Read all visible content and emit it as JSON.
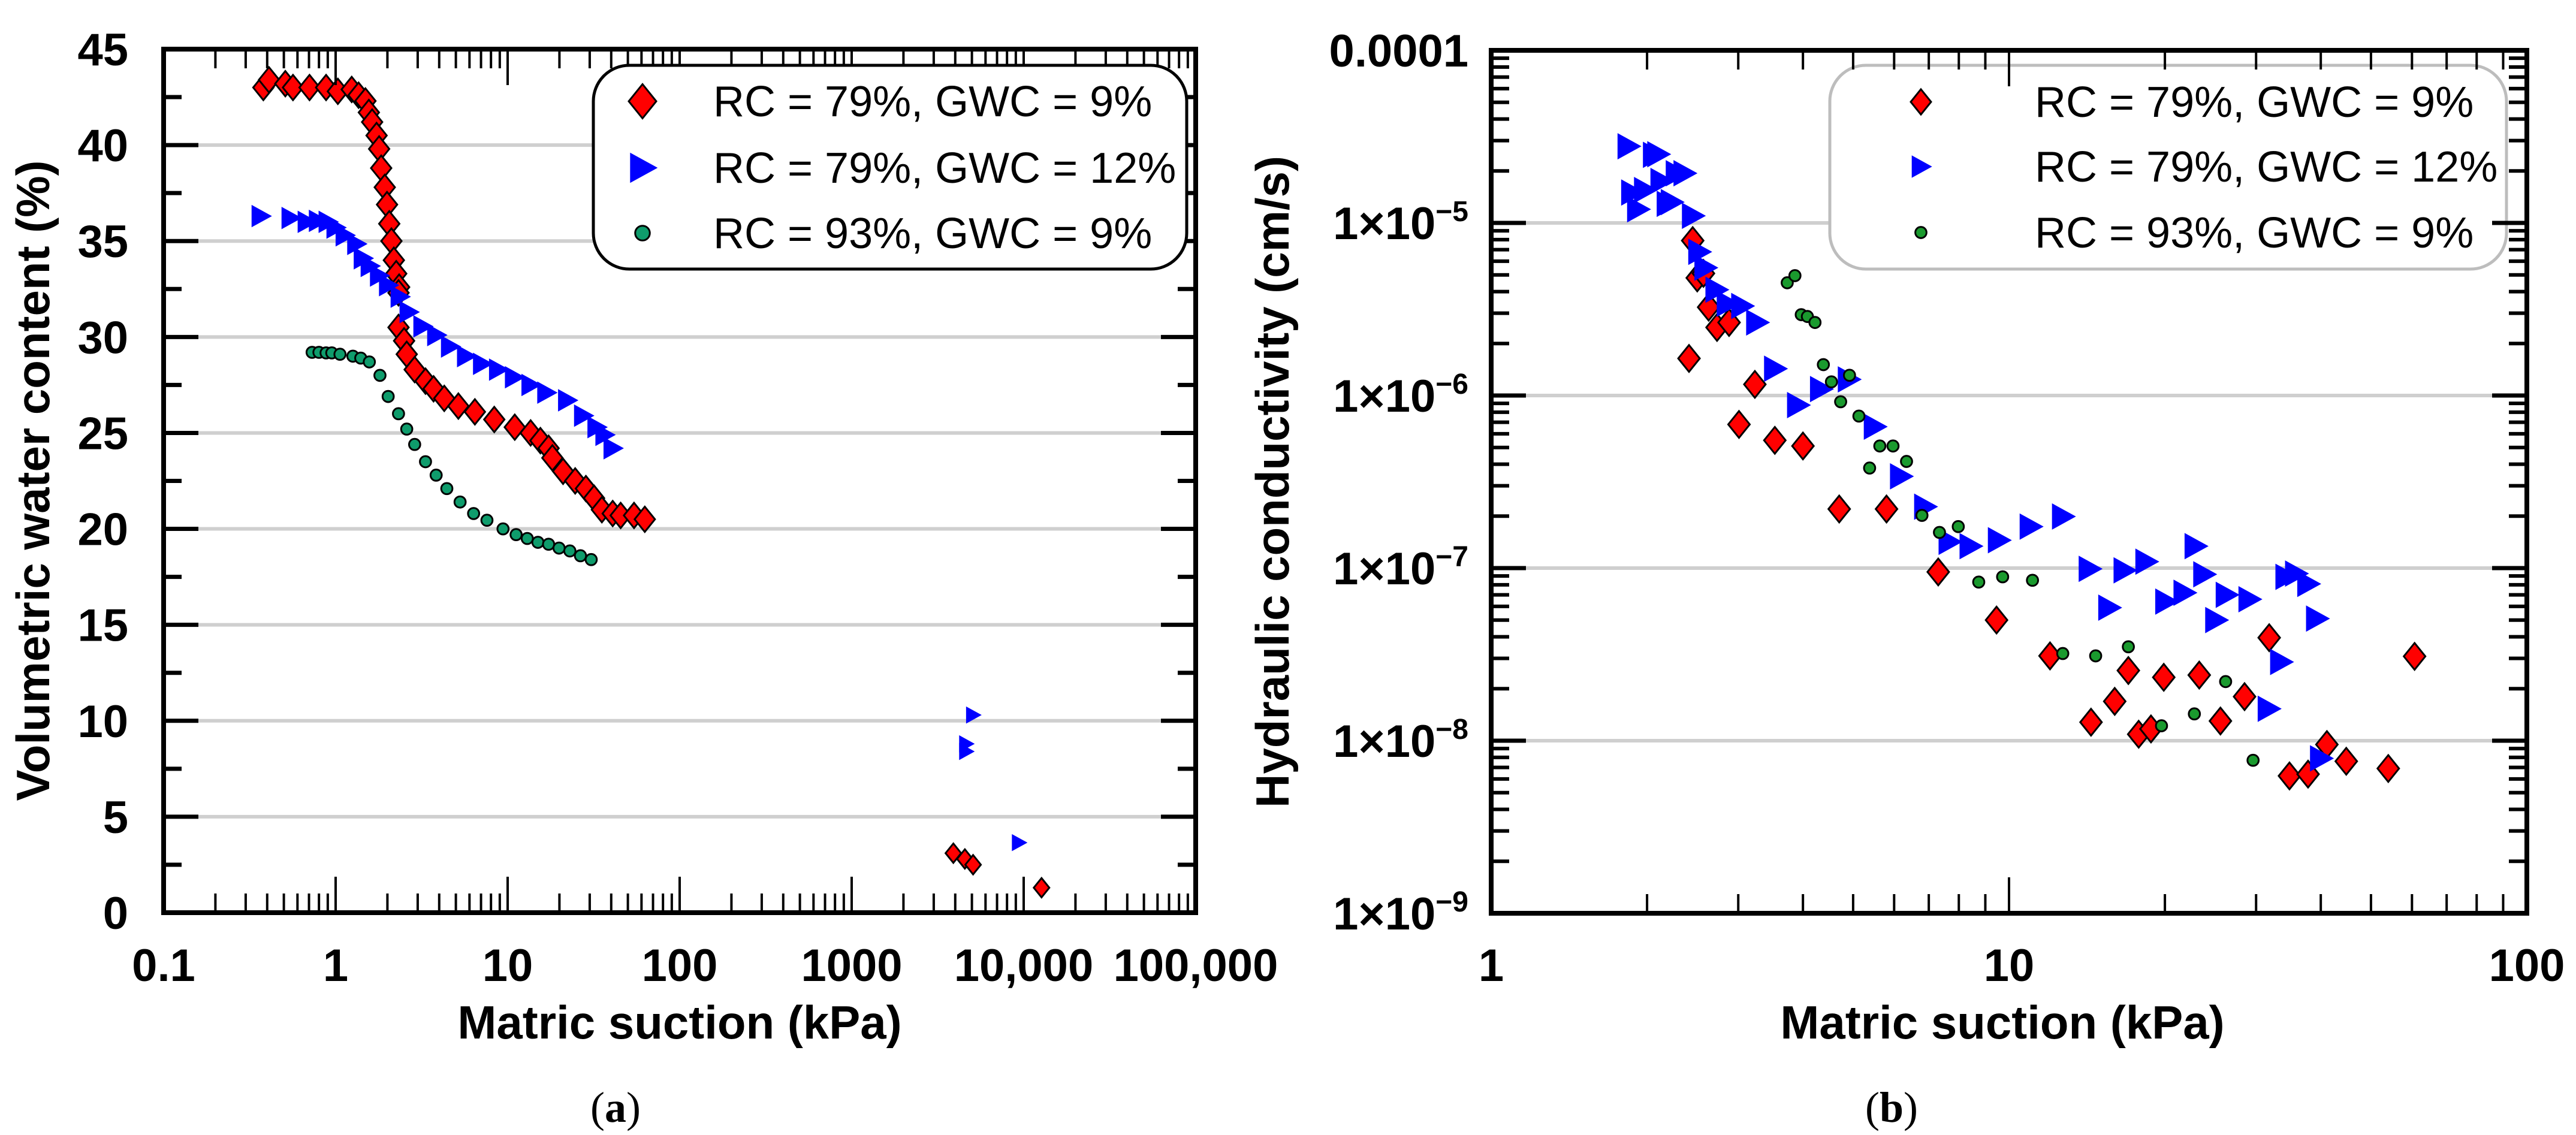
{
  "captions": {
    "a_open": "(",
    "a_letter": "a",
    "a_close": ")",
    "b_open": "(",
    "b_letter": "b",
    "b_close": ")"
  },
  "chart_data": [
    {
      "panel": "a",
      "type": "scatter",
      "title": "",
      "xlabel": "Matric suction (kPa)",
      "ylabel": "Volumetric water content (%)",
      "xscale": "log",
      "xlim": [
        0.1,
        100000
      ],
      "ylim": [
        0,
        45
      ],
      "grid": true,
      "legend_position": "top-right",
      "xtick_values": [
        0.1,
        1,
        10,
        100,
        1000,
        10000,
        100000
      ],
      "xtick_labels": [
        "0.1",
        "1",
        "10",
        "100",
        "1000",
        "10,000",
        "100,000"
      ],
      "ytick_values": [
        0,
        5,
        10,
        15,
        20,
        25,
        30,
        35,
        40,
        45
      ],
      "ytick_labels": [
        "0",
        "5",
        "10",
        "15",
        "20",
        "25",
        "30",
        "35",
        "40",
        "45"
      ],
      "series": [
        {
          "name": "RC = 79%, GWC = 9%",
          "color": "#ff0000",
          "marker": "diamond",
          "points": [
            [
              0.38,
              43.0
            ],
            [
              0.41,
              43.4
            ],
            [
              0.51,
              43.2
            ],
            [
              0.565,
              43.0
            ],
            [
              0.705,
              43.0
            ],
            [
              0.88,
              43.0
            ],
            [
              1.03,
              42.8
            ],
            [
              1.24,
              42.9
            ],
            [
              1.36,
              42.6
            ],
            [
              1.49,
              42.3
            ],
            [
              1.56,
              41.7
            ],
            [
              1.63,
              41.2
            ],
            [
              1.73,
              40.5
            ],
            [
              1.79,
              39.8
            ],
            [
              1.84,
              38.8
            ],
            [
              1.93,
              37.8
            ],
            [
              1.99,
              36.9
            ],
            [
              2.05,
              35.9
            ],
            [
              2.11,
              35.0
            ],
            [
              2.18,
              34.0
            ],
            [
              2.25,
              33.3
            ],
            [
              2.34,
              32.6
            ],
            [
              2.32,
              32.3
            ],
            [
              2.32,
              30.5
            ],
            [
              2.5,
              29.8
            ],
            [
              2.59,
              29.1
            ],
            [
              2.88,
              28.3
            ],
            [
              3.33,
              27.7
            ],
            [
              3.71,
              27.3
            ],
            [
              4.28,
              26.8
            ],
            [
              5.17,
              26.4
            ],
            [
              6.45,
              26.1
            ],
            [
              8.36,
              25.7
            ],
            [
              11.0,
              25.3
            ],
            [
              13.6,
              25.0
            ],
            [
              15.5,
              24.6
            ],
            [
              17.3,
              24.2
            ],
            [
              18.2,
              23.7
            ],
            [
              21.0,
              23.0
            ],
            [
              24.7,
              22.5
            ],
            [
              28.5,
              22.1
            ],
            [
              31.8,
              21.6
            ],
            [
              35.3,
              21.0
            ],
            [
              40.8,
              20.8
            ],
            [
              45.4,
              20.7
            ],
            [
              54.3,
              20.7
            ],
            [
              62.7,
              20.5
            ],
            [
              3900,
              3.1
            ],
            [
              4550,
              2.8
            ],
            [
              5080,
              2.5
            ],
            [
              12700,
              1.3
            ]
          ]
        },
        {
          "name": "RC = 79%, GWC = 12%",
          "color": "#0000ff",
          "marker": "triangle-right",
          "points": [
            [
              0.367,
              36.3
            ],
            [
              0.548,
              36.2
            ],
            [
              0.68,
              36.0
            ],
            [
              0.79,
              36.05
            ],
            [
              0.9,
              36.0
            ],
            [
              1.0,
              35.7
            ],
            [
              1.13,
              35.3
            ],
            [
              1.32,
              34.85
            ],
            [
              1.44,
              34.1
            ],
            [
              1.58,
              33.7
            ],
            [
              1.79,
              33.2
            ],
            [
              2.02,
              32.7
            ],
            [
              2.36,
              32.1
            ],
            [
              2.66,
              31.3
            ],
            [
              3.2,
              30.55
            ],
            [
              3.85,
              30.1
            ],
            [
              4.63,
              29.5
            ],
            [
              5.74,
              29.0
            ],
            [
              7.11,
              28.6
            ],
            [
              8.81,
              28.3
            ],
            [
              10.9,
              27.9
            ],
            [
              13.6,
              27.5
            ],
            [
              16.8,
              27.1
            ],
            [
              22.2,
              26.7
            ],
            [
              27.5,
              25.9
            ],
            [
              32.9,
              25.3
            ],
            [
              36.6,
              24.9
            ],
            [
              40.8,
              24.2
            ],
            [
              5080,
              10.3
            ],
            [
              4630,
              8.8
            ],
            [
              4630,
              8.4
            ],
            [
              9380,
              3.65
            ]
          ]
        },
        {
          "name": "RC = 93%, GWC = 9%",
          "color": "#0f9c6c",
          "marker": "circle",
          "points": [
            [
              0.73,
              29.2
            ],
            [
              0.8,
              29.2
            ],
            [
              0.88,
              29.17
            ],
            [
              0.95,
              29.17
            ],
            [
              1.06,
              29.1
            ],
            [
              1.26,
              29.0
            ],
            [
              1.4,
              28.9
            ],
            [
              1.57,
              28.7
            ],
            [
              1.81,
              28.0
            ],
            [
              2.02,
              26.9
            ],
            [
              2.32,
              26.0
            ],
            [
              2.59,
              25.2
            ],
            [
              2.88,
              24.4
            ],
            [
              3.33,
              23.5
            ],
            [
              3.84,
              22.8
            ],
            [
              4.43,
              22.1
            ],
            [
              5.29,
              21.4
            ],
            [
              6.34,
              20.8
            ],
            [
              7.58,
              20.45
            ],
            [
              9.4,
              20.0
            ],
            [
              11.2,
              19.7
            ],
            [
              13.0,
              19.5
            ],
            [
              15.0,
              19.3
            ],
            [
              17.3,
              19.2
            ],
            [
              19.9,
              19.0
            ],
            [
              23.0,
              18.85
            ],
            [
              26.5,
              18.6
            ],
            [
              30.6,
              18.4
            ]
          ]
        }
      ]
    },
    {
      "panel": "b",
      "type": "scatter",
      "title": "",
      "xlabel": "Matric suction (kPa)",
      "ylabel": "Hydraulic conductivity (cm/s)",
      "xscale": "log",
      "yscale": "log",
      "xlim": [
        1,
        100
      ],
      "ylim": [
        1e-09,
        0.0001
      ],
      "grid": true,
      "legend_position": "top-right",
      "xtick_values": [
        1,
        10,
        100
      ],
      "xtick_labels": [
        "1",
        "10",
        "100"
      ],
      "ytick_values": [
        0.0001,
        1e-05,
        1e-06,
        1e-07,
        1e-08,
        1e-09
      ],
      "ytick_labels": [
        {
          "base": "0.0001",
          "exp": ""
        },
        {
          "base": "1×10",
          "exp": "−5"
        },
        {
          "base": "1×10",
          "exp": "−6"
        },
        {
          "base": "1×10",
          "exp": "−7"
        },
        {
          "base": "1×10",
          "exp": "−8"
        },
        {
          "base": "1×10",
          "exp": "−9"
        }
      ],
      "series": [
        {
          "name": "RC = 79%, GWC = 9%",
          "color": "#ff0000",
          "marker": "diamond",
          "points": [
            [
              2.45,
              7.9e-06
            ],
            [
              2.5,
              4.8e-06
            ],
            [
              2.57,
              5.1e-06
            ],
            [
              2.63,
              3.25e-06
            ],
            [
              2.73,
              2.48e-06
            ],
            [
              2.88,
              2.65e-06
            ],
            [
              2.41,
              1.64e-06
            ],
            [
              3.23,
              1.16e-06
            ],
            [
              3.01,
              6.8e-07
            ],
            [
              3.53,
              5.5e-07
            ],
            [
              4.0,
              5.1e-07
            ],
            [
              4.7,
              2.2e-07
            ],
            [
              5.8,
              2.2e-07
            ],
            [
              7.3,
              9.5e-08
            ],
            [
              9.46,
              5e-08
            ],
            [
              12.0,
              3.1e-08
            ],
            [
              17.0,
              2.55e-08
            ],
            [
              19.9,
              2.33e-08
            ],
            [
              23.3,
              2.4e-08
            ],
            [
              31.8,
              3.95e-08
            ],
            [
              60.7,
              3.08e-08
            ],
            [
              16.0,
              1.69e-08
            ],
            [
              14.4,
              1.28e-08
            ],
            [
              17.8,
              1.09e-08
            ],
            [
              18.8,
              1.17e-08
            ],
            [
              25.6,
              1.3e-08
            ],
            [
              28.5,
              1.8e-08
            ],
            [
              41.1,
              9.5e-09
            ],
            [
              34.8,
              6.25e-09
            ],
            [
              37.8,
              6.4e-09
            ],
            [
              44.8,
              7.6e-09
            ],
            [
              54.0,
              6.9e-09
            ]
          ]
        },
        {
          "name": "RC = 79%, GWC = 12%",
          "color": "#0000ff",
          "marker": "triangle-right",
          "points": [
            [
              1.84,
              2.78e-05
            ],
            [
              2.06,
              2.48e-05
            ],
            [
              2.1,
              2.5e-05
            ],
            [
              2.36,
              1.94e-05
            ],
            [
              2.28,
              1.94e-05
            ],
            [
              2.13,
              1.75e-05
            ],
            [
              1.87,
              1.5e-05
            ],
            [
              1.98,
              1.55e-05
            ],
            [
              1.92,
              1.2e-05
            ],
            [
              2.19,
              1.29e-05
            ],
            [
              2.23,
              1.32e-05
            ],
            [
              2.45,
              1.1e-05
            ],
            [
              2.52,
              6.8e-06
            ],
            [
              2.59,
              5.5e-06
            ],
            [
              2.72,
              4.1e-06
            ],
            [
              2.86,
              3.4e-06
            ],
            [
              3.05,
              3.3e-06
            ],
            [
              3.26,
              2.65e-06
            ],
            [
              3.53,
              1.43e-06
            ],
            [
              3.91,
              8.8e-07
            ],
            [
              4.33,
              1.09e-06
            ],
            [
              4.9,
              1.24e-06
            ],
            [
              5.5,
              6.6e-07
            ],
            [
              6.18,
              3.4e-07
            ],
            [
              6.88,
              2.27e-07
            ],
            [
              7.67,
              1.42e-07
            ],
            [
              8.42,
              1.34e-07
            ],
            [
              9.55,
              1.45e-07
            ],
            [
              11.0,
              1.74e-07
            ],
            [
              12.7,
              1.99e-07
            ],
            [
              14.3,
              9.9e-08
            ],
            [
              15.6,
              5.9e-08
            ],
            [
              16.7,
              9.7e-08
            ],
            [
              18.4,
              1.09e-07
            ],
            [
              20.1,
              6.4e-08
            ],
            [
              21.8,
              7.2e-08
            ],
            [
              22.9,
              1.34e-07
            ],
            [
              23.8,
              9.2e-08
            ],
            [
              25.1,
              5e-08
            ],
            [
              26.3,
              7e-08
            ],
            [
              29.1,
              6.6e-08
            ],
            [
              34.3,
              8.9e-08
            ],
            [
              35.8,
              9.3e-08
            ],
            [
              37.8,
              8.1e-08
            ],
            [
              39.3,
              5.1e-08
            ],
            [
              33.5,
              2.86e-08
            ],
            [
              31.7,
              1.53e-08
            ],
            [
              40.0,
              7.9e-09
            ]
          ]
        },
        {
          "name": "RC = 93%, GWC = 9%",
          "color": "#1a9a2e",
          "marker": "circle",
          "points": [
            [
              3.73,
              4.5e-06
            ],
            [
              3.86,
              4.95e-06
            ],
            [
              3.97,
              2.94e-06
            ],
            [
              4.08,
              2.87e-06
            ],
            [
              4.22,
              2.65e-06
            ],
            [
              4.38,
              1.51e-06
            ],
            [
              4.54,
              1.2e-06
            ],
            [
              4.92,
              1.31e-06
            ],
            [
              4.73,
              9.2e-07
            ],
            [
              5.13,
              7.6e-07
            ],
            [
              5.63,
              5.1e-07
            ],
            [
              5.38,
              3.8e-07
            ],
            [
              5.97,
              5.1e-07
            ],
            [
              6.34,
              4.15e-07
            ],
            [
              6.79,
              2.02e-07
            ],
            [
              7.34,
              1.61e-07
            ],
            [
              7.98,
              1.74e-07
            ],
            [
              8.74,
              8.3e-08
            ],
            [
              9.72,
              8.9e-08
            ],
            [
              11.1,
              8.5e-08
            ],
            [
              12.7,
              3.2e-08
            ],
            [
              14.7,
              3.1e-08
            ],
            [
              17.0,
              3.5e-08
            ],
            [
              26.2,
              2.2e-08
            ],
            [
              22.8,
              1.43e-08
            ],
            [
              19.7,
              1.22e-08
            ],
            [
              29.6,
              7.7e-09
            ]
          ]
        }
      ]
    }
  ]
}
